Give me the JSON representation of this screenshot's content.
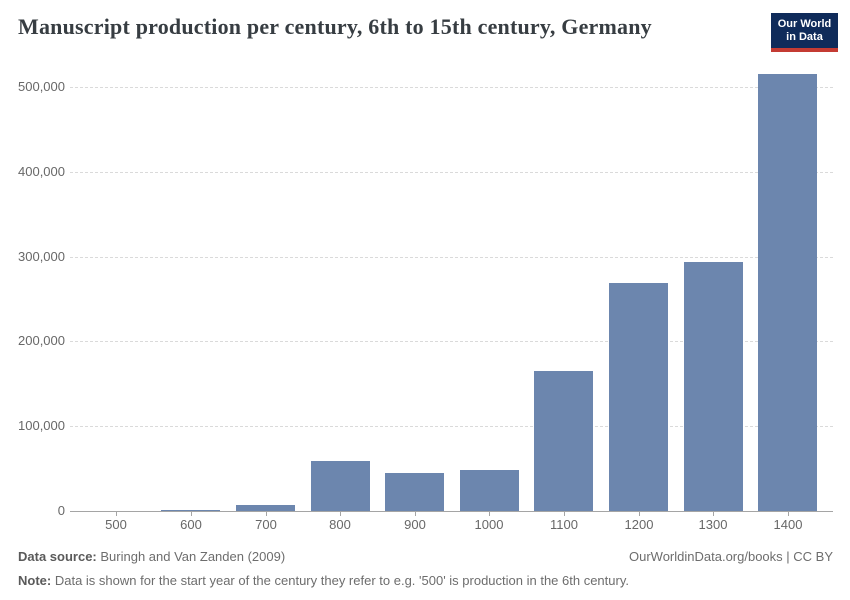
{
  "header": {
    "title": "Manuscript production per century, 6th to 15th century, Germany",
    "logo": {
      "line1": "Our World",
      "line2": "in Data",
      "bg_color": "#0f2b5a",
      "accent_color": "#c43b33"
    }
  },
  "chart_data": {
    "type": "bar",
    "title": "Manuscript production per century, 6th to 15th century, Germany",
    "xlabel": "",
    "ylabel": "",
    "categories": [
      "500",
      "600",
      "700",
      "800",
      "900",
      "1000",
      "1100",
      "1200",
      "1300",
      "1400"
    ],
    "values": [
      432,
      951,
      7664,
      59059,
      45165,
      48658,
      165724,
      268975,
      293757,
      515594
    ],
    "bar_color": "#6c86ae",
    "ylim": [
      0,
      530000
    ],
    "yticks": [
      0,
      100000,
      200000,
      300000,
      400000,
      500000
    ],
    "ytick_labels": [
      "0",
      "100,000",
      "200,000",
      "300,000",
      "400,000",
      "500,000"
    ],
    "grid": "horizontal-dashed",
    "legend": "none"
  },
  "footer": {
    "source_label": "Data source:",
    "source_text": "Buringh and Van Zanden (2009)",
    "attribution": "OurWorldinData.org/books | CC BY",
    "note_label": "Note:",
    "note_text": "Data is shown for the start year of the century they refer to e.g. '500' is production in the 6th century."
  }
}
